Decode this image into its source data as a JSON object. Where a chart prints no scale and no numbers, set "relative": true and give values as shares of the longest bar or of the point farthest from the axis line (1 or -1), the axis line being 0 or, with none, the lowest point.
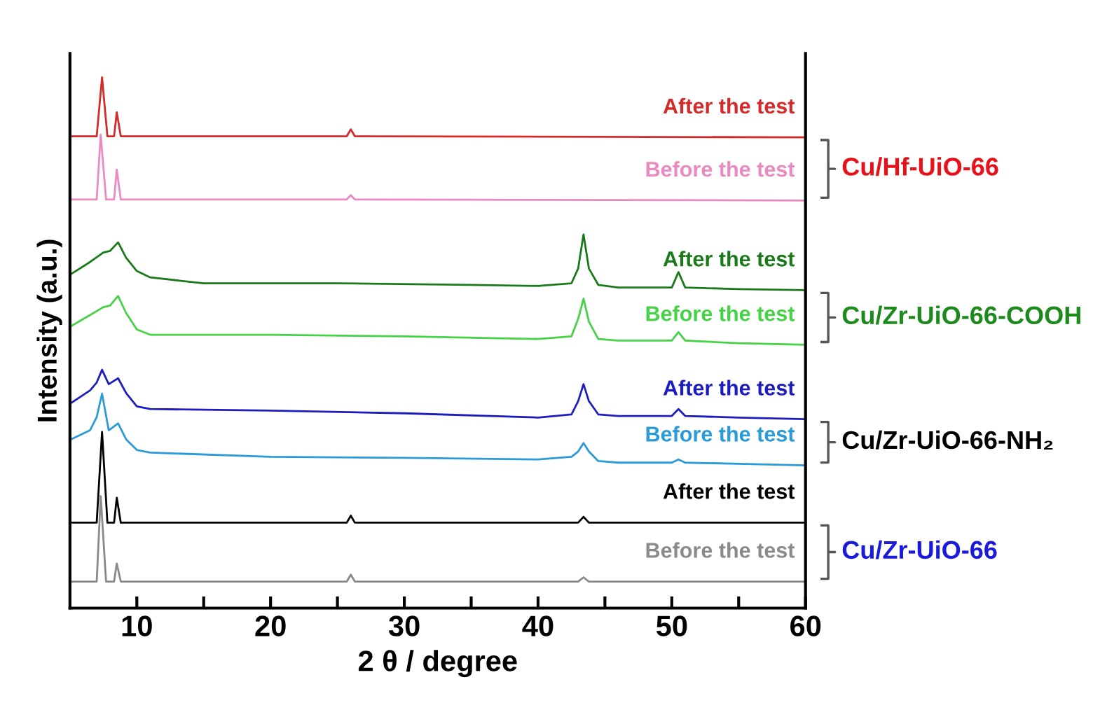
{
  "chart_data": {
    "type": "line",
    "relative": true,
    "xlabel": "2 θ / degree",
    "ylabel": "Intensity (a.u.)",
    "xlim": [
      5,
      60
    ],
    "xticks": [
      10,
      {
        "value": 15,
        "label": null
      },
      20,
      {
        "value": 25,
        "label": null
      },
      30,
      {
        "value": 35,
        "label": null
      },
      40,
      {
        "value": 45,
        "label": null
      },
      50,
      {
        "value": 55,
        "label": null
      },
      60
    ],
    "tick_labels": "x",
    "grid": false,
    "legend": false,
    "marker": "none",
    "line_style": "solid",
    "annotations": [
      "Cu/Hf-UiO-66",
      "Cu/Zr-UiO-66-COOH",
      "Cu/Zr-UiO-66-NH₂",
      "Cu/Zr-UiO-66"
    ],
    "series": [
      {
        "name": "After the test",
        "color": "#d42a2a",
        "x": [
          5,
          7.0,
          7.4,
          7.8,
          8.3,
          8.5,
          8.8,
          25.7,
          26.0,
          26.3,
          60
        ],
        "values": [
          0.889,
          0.889,
          1.0,
          0.889,
          0.889,
          0.934,
          0.889,
          0.889,
          0.902,
          0.889,
          0.887
        ]
      },
      {
        "name": "Before the test",
        "color": "#e98ac0",
        "x": [
          5,
          7.0,
          7.3,
          7.7,
          8.3,
          8.5,
          8.8,
          25.7,
          26.0,
          26.3,
          60
        ],
        "values": [
          0.77,
          0.77,
          0.892,
          0.77,
          0.77,
          0.826,
          0.77,
          0.77,
          0.778,
          0.77,
          0.768
        ]
      },
      {
        "name": "After the test",
        "color": "#1a7a1a",
        "x": [
          5,
          6.5,
          7.5,
          8,
          8.6,
          9.2,
          10,
          11,
          15,
          25,
          35,
          40,
          42.5,
          43.0,
          43.4,
          43.8,
          44.5,
          46,
          50,
          50.5,
          51,
          55,
          60
        ],
        "values": [
          0.628,
          0.652,
          0.67,
          0.673,
          0.689,
          0.66,
          0.635,
          0.623,
          0.612,
          0.612,
          0.609,
          0.607,
          0.612,
          0.64,
          0.704,
          0.64,
          0.609,
          0.604,
          0.604,
          0.633,
          0.604,
          0.601,
          0.599
        ]
      },
      {
        "name": "Before the test",
        "color": "#45d245",
        "x": [
          5,
          6.5,
          7.5,
          8,
          8.6,
          9.2,
          10,
          11,
          20,
          30,
          40,
          42.5,
          43.0,
          43.4,
          43.8,
          44.5,
          46,
          50,
          50.5,
          51,
          55,
          60
        ],
        "values": [
          0.53,
          0.552,
          0.567,
          0.57,
          0.588,
          0.556,
          0.525,
          0.515,
          0.515,
          0.512,
          0.507,
          0.512,
          0.545,
          0.583,
          0.54,
          0.507,
          0.504,
          0.504,
          0.52,
          0.504,
          0.499,
          0.496
        ]
      },
      {
        "name": "After the test",
        "color": "#1c1cc0",
        "x": [
          5,
          6.5,
          7.0,
          7.4,
          7.9,
          8.6,
          9.2,
          10,
          11,
          20,
          30,
          40,
          42.5,
          43.0,
          43.4,
          43.8,
          44.5,
          46,
          50,
          50.5,
          51,
          55,
          60
        ],
        "values": [
          0.385,
          0.41,
          0.425,
          0.449,
          0.422,
          0.433,
          0.405,
          0.38,
          0.375,
          0.372,
          0.367,
          0.359,
          0.365,
          0.39,
          0.422,
          0.39,
          0.365,
          0.362,
          0.362,
          0.375,
          0.362,
          0.359,
          0.356
        ]
      },
      {
        "name": "Before the test",
        "color": "#2a9ad8",
        "x": [
          5,
          6.5,
          7.0,
          7.4,
          7.9,
          8.6,
          9.2,
          10,
          11,
          20,
          30,
          40,
          42.5,
          43.0,
          43.4,
          43.8,
          44.5,
          46,
          50,
          50.5,
          51,
          55,
          60
        ],
        "values": [
          0.317,
          0.335,
          0.36,
          0.404,
          0.335,
          0.348,
          0.318,
          0.298,
          0.293,
          0.285,
          0.283,
          0.28,
          0.285,
          0.295,
          0.311,
          0.295,
          0.277,
          0.274,
          0.274,
          0.28,
          0.274,
          0.272,
          0.269
        ]
      },
      {
        "name": "After the test",
        "color": "#000000",
        "x": [
          5,
          7.0,
          7.4,
          7.8,
          8.3,
          8.5,
          8.8,
          25.7,
          26.0,
          26.3,
          43.0,
          43.4,
          43.8,
          60
        ],
        "values": [
          0.161,
          0.161,
          0.332,
          0.161,
          0.161,
          0.208,
          0.161,
          0.161,
          0.174,
          0.161,
          0.161,
          0.172,
          0.161,
          0.161
        ]
      },
      {
        "name": "Before the test",
        "color": "#8a8a8a",
        "x": [
          5,
          7.0,
          7.3,
          7.7,
          8.3,
          8.5,
          8.8,
          25.7,
          26.0,
          26.3,
          43.0,
          43.4,
          43.8,
          60
        ],
        "values": [
          0.05,
          0.05,
          0.211,
          0.05,
          0.05,
          0.084,
          0.05,
          0.05,
          0.063,
          0.05,
          0.05,
          0.058,
          0.05,
          0.05
        ]
      }
    ]
  }
}
